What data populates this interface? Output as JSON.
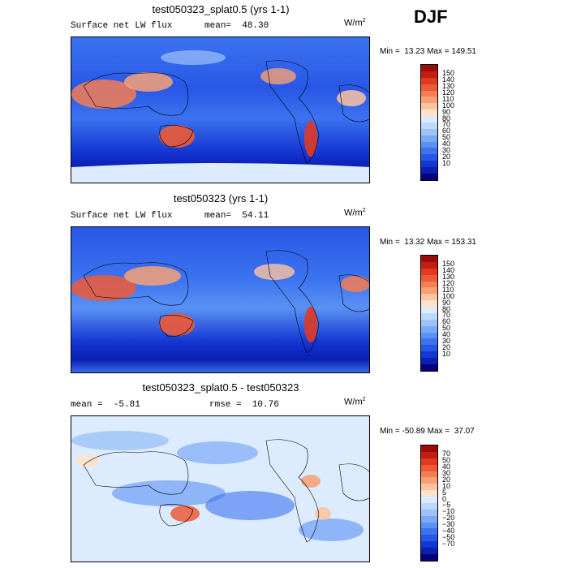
{
  "season": "DJF",
  "panels": [
    {
      "title": "test050323_splat0.5 (yrs 1-1)",
      "stat_left": "Surface net LW flux      mean=  48.30",
      "stat_right": "",
      "units_base": "W/m",
      "units_exp": "2",
      "minmax": "Min =  13.23 Max = 149.51",
      "colorbar_colors": [
        "#08007a",
        "#0a1fb4",
        "#1437d2",
        "#2857e6",
        "#3c73f0",
        "#5a91f5",
        "#7aaaf7",
        "#9cc3f9",
        "#bcd8fb",
        "#dcebfd",
        "#fde2cc",
        "#fbc3a0",
        "#f8a074",
        "#f47d52",
        "#ee5a36",
        "#e03a22",
        "#c41e14",
        "#9e0a08"
      ],
      "colorbar_labels": [
        "150",
        "140",
        "130",
        "120",
        "110",
        "100",
        "90",
        "80",
        "70",
        "60",
        "50",
        "40",
        "30",
        "20",
        "10"
      ]
    },
    {
      "title": "test050323 (yrs 1-1)",
      "stat_left": "Surface net LW flux      mean=  54.11",
      "stat_right": "",
      "units_base": "W/m",
      "units_exp": "2",
      "minmax": "Min =  13.32 Max = 153.31",
      "colorbar_colors": [
        "#08007a",
        "#0a1fb4",
        "#1437d2",
        "#2857e6",
        "#3c73f0",
        "#5a91f5",
        "#7aaaf7",
        "#9cc3f9",
        "#bcd8fb",
        "#dcebfd",
        "#fde2cc",
        "#fbc3a0",
        "#f8a074",
        "#f47d52",
        "#ee5a36",
        "#e03a22",
        "#c41e14",
        "#9e0a08"
      ],
      "colorbar_labels": [
        "150",
        "140",
        "130",
        "120",
        "110",
        "100",
        "90",
        "80",
        "70",
        "60",
        "50",
        "40",
        "30",
        "20",
        "10"
      ]
    },
    {
      "title": "test050323_splat0.5 - test050323",
      "stat_left": "mean =  -5.81",
      "stat_right": "rmse =  10.76",
      "units_base": "W/m",
      "units_exp": "2",
      "minmax": "Min = -50.89 Max =  37.07",
      "colorbar_colors": [
        "#08007a",
        "#0a1fb4",
        "#1437d2",
        "#2857e6",
        "#3c73f0",
        "#5a91f5",
        "#7aaaf7",
        "#9cc3f9",
        "#bcd8fb",
        "#dcebfd",
        "#fde2cc",
        "#fbc3a0",
        "#f8a074",
        "#f47d52",
        "#ee5a36",
        "#e03a22",
        "#c41e14",
        "#9e0a08"
      ],
      "colorbar_labels": [
        "70",
        "50",
        "40",
        "30",
        "20",
        "10",
        "5",
        "0",
        "−5",
        "−10",
        "−20",
        "−30",
        "−40",
        "−50",
        "−70"
      ]
    }
  ]
}
